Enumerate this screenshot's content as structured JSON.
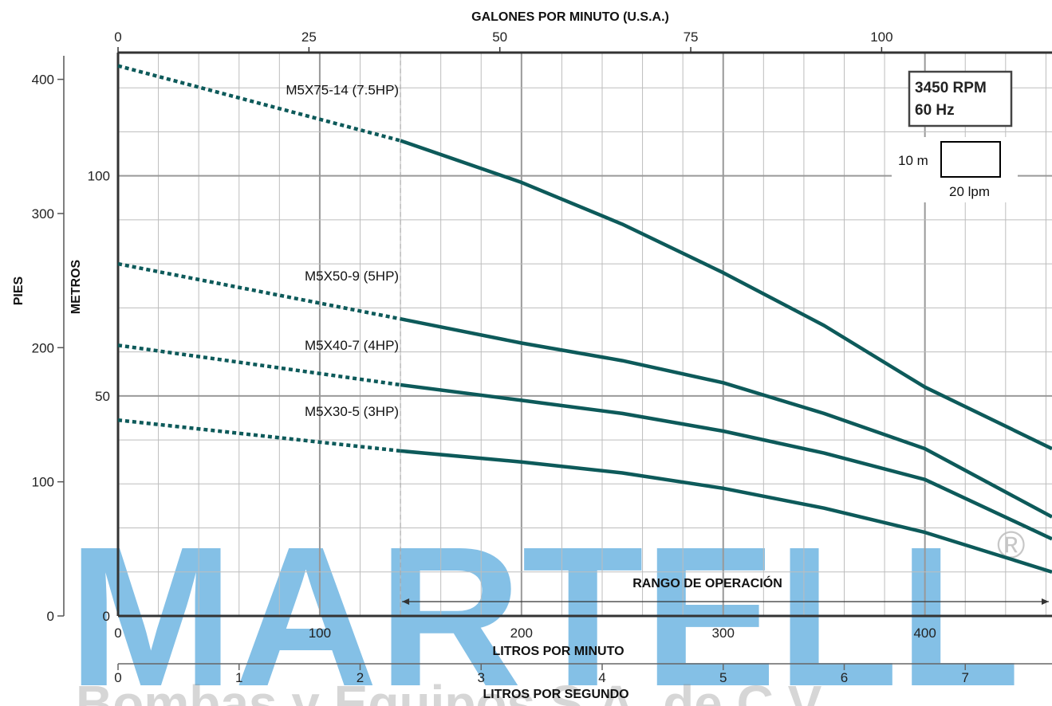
{
  "chart_data": {
    "type": "line",
    "title": "",
    "x_axes": {
      "top": {
        "label": "GALONES POR MINUTO (U.S.A.)",
        "ticks": [
          "0",
          "25",
          "50",
          "75",
          "100"
        ],
        "tick_values": [
          0,
          25,
          50,
          75,
          100
        ]
      },
      "bottom_lpm": {
        "label": "LITROS POR MINUTO",
        "ticks": [
          "0",
          "100",
          "200",
          "300",
          "400"
        ],
        "tick_values": [
          0,
          100,
          200,
          300,
          400
        ]
      },
      "bottom_lps": {
        "label": "LITROS POR SEGUNDO",
        "ticks": [
          "0",
          "1",
          "2",
          "3",
          "4",
          "5",
          "6",
          "7"
        ],
        "tick_values": [
          0,
          1,
          2,
          3,
          4,
          5,
          6,
          7
        ]
      }
    },
    "y_axes": {
      "feet": {
        "label": "PIES",
        "ticks": [
          "0",
          "100",
          "200",
          "300",
          "400"
        ],
        "tick_values": [
          0,
          100,
          200,
          300,
          400
        ]
      },
      "meters": {
        "label": "METROS",
        "ticks": [
          "0",
          "50",
          "100"
        ],
        "tick_values": [
          0,
          50,
          100
        ]
      }
    },
    "xlim_lpm": [
      0,
      463
    ],
    "ylim_m": [
      0,
      128
    ],
    "grid": true,
    "operating_range_start_lpm": 140,
    "operating_range_label": "RANGO DE OPERACIÓN",
    "series": [
      {
        "name": "M5X75-14 (7.5HP)",
        "x": [
          0,
          140,
          200,
          250,
          300,
          350,
          400,
          463
        ],
        "y": [
          125,
          108,
          98.5,
          89,
          78,
          66,
          52,
          38
        ]
      },
      {
        "name": "M5X50-9 (5HP)",
        "x": [
          0,
          140,
          200,
          250,
          300,
          350,
          400,
          463
        ],
        "y": [
          80,
          67.5,
          62,
          58,
          53,
          46,
          38,
          22.5
        ]
      },
      {
        "name": "M5X40-7 (4HP)",
        "x": [
          0,
          140,
          200,
          250,
          300,
          350,
          400,
          463
        ],
        "y": [
          61.5,
          52.5,
          49,
          46,
          42,
          37,
          31,
          17.5
        ]
      },
      {
        "name": "M5X30-5 (3HP)",
        "x": [
          0,
          140,
          200,
          250,
          300,
          350,
          400,
          463
        ],
        "y": [
          44.5,
          37.5,
          35,
          32.5,
          29,
          24.5,
          19,
          10
        ]
      }
    ],
    "info_box": {
      "line1": "3450 RPM",
      "line2": "60 Hz"
    },
    "scale_box": {
      "vertical": "10 m",
      "horizontal": "20 lpm"
    },
    "colors": {
      "curve": "#0d5a5a",
      "curve_light": "#3f8a8e",
      "grid": "#bdbdbd",
      "axis": "#333333"
    }
  },
  "watermark": {
    "main": "MARTELL",
    "registered": "®",
    "subtitle": "Bombas y Equipos S.A. de C.V."
  }
}
